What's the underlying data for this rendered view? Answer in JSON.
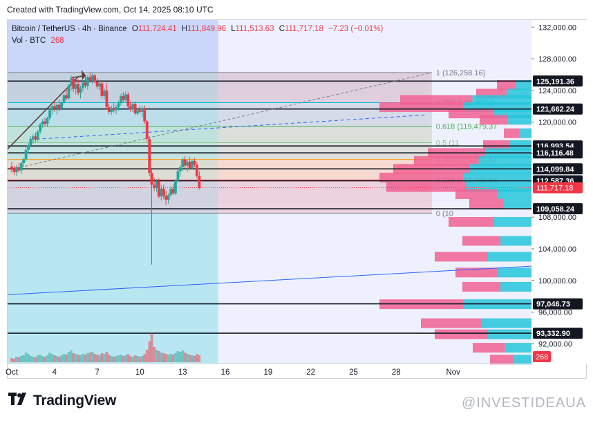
{
  "header": {
    "created_text": "Created with TradingView.com, Oct 14, 2025 08:10 UTC"
  },
  "legend": {
    "symbol": "Bitcoin / TetherUS · 4h · Binance",
    "open_k": "O",
    "open_v": "111,724.41",
    "high_k": "H",
    "high_v": "111,849.96",
    "low_k": "L",
    "low_v": "111,513.63",
    "close_k": "C",
    "close_v": "111,717.18",
    "change": "−7.23 (−0.01%)",
    "volume_label": "Vol · BTC",
    "volume_value": "268"
  },
  "footer": {
    "brand": "TradingView",
    "watermark": "@INVESTIDEAUA"
  },
  "colors": {
    "bull": "#26a69a",
    "bear": "#f23645",
    "blue_zone": "#9fb5f5",
    "pink_zone": "#f4b8c8",
    "teal_zone": "#7fd3e6",
    "vp_pink": "#f06292",
    "vp_cyan": "#26c6da",
    "trend_blue": "#2962ff"
  },
  "chart_data": {
    "type": "candlestick",
    "y_axis": {
      "range": [
        89500,
        132900
      ],
      "ticks": [
        132000,
        128000,
        124000,
        120000,
        116000,
        108000,
        104000,
        100000,
        96000,
        92000
      ],
      "tick_labels": [
        "132,000.00",
        "128,000.00",
        "124,000.00",
        "120,000.00",
        "116,000.00",
        "108,000.00",
        "104,000.00",
        "100,000.00",
        "96,000.00",
        "92,000.00"
      ]
    },
    "x_axis": {
      "range_days": [
        0,
        36.5
      ],
      "ticks": [
        {
          "day": 0,
          "label": "Oct"
        },
        {
          "day": 3,
          "label": "4"
        },
        {
          "day": 6,
          "label": "7"
        },
        {
          "day": 9,
          "label": "10"
        },
        {
          "day": 12,
          "label": "13"
        },
        {
          "day": 15,
          "label": "16"
        },
        {
          "day": 18,
          "label": "19"
        },
        {
          "day": 21,
          "label": "22"
        },
        {
          "day": 24,
          "label": "25"
        },
        {
          "day": 27,
          "label": "28"
        },
        {
          "day": 31,
          "label": "Nov"
        }
      ]
    },
    "price_lines": [
      {
        "price": 125191.36,
        "label": "125,191.36"
      },
      {
        "price": 121662.24,
        "label": "121,662.24"
      },
      {
        "price": 116993.54,
        "label": "116,993.54"
      },
      {
        "price": 116116.48,
        "label": "116,116.48"
      },
      {
        "price": 114099.84,
        "label": "114,099.84"
      },
      {
        "price": 112587.36,
        "label": "112,587.36"
      },
      {
        "price": 109058.24,
        "label": "109,058.24"
      },
      {
        "price": 97046.73,
        "label": "97,046.73"
      },
      {
        "price": 93332.9,
        "label": "93,332.90"
      }
    ],
    "current_price": {
      "price": 111717.18,
      "label": "111,717.18"
    },
    "volume_badge": "268",
    "fib_levels": [
      {
        "ratio": "1",
        "price": 126258.16,
        "label": "1 (126,258.16)"
      },
      {
        "ratio": "0.786",
        "price": 122460.6,
        "label": "0.786 (122,460.6"
      },
      {
        "ratio": "0.618",
        "price": 119479.37,
        "label": "0.618 (119,479.37"
      },
      {
        "ratio": "0.5",
        "price": 117400,
        "label": "0.5 (11"
      },
      {
        "ratio": "0.382",
        "price": 115291.43,
        "label": "0.382 (115,291.43"
      },
      {
        "ratio": "0.236",
        "price": 112700.58,
        "label": "0.236 (112,700.58"
      },
      {
        "ratio": "0",
        "price": 108500,
        "label": "0 (10"
      }
    ],
    "candles": [
      {
        "d": 0.0,
        "o": 114400,
        "h": 115000,
        "l": 113600,
        "c": 114000
      },
      {
        "d": 0.17,
        "o": 114000,
        "h": 114500,
        "l": 113300,
        "c": 113700
      },
      {
        "d": 0.33,
        "o": 113700,
        "h": 114600,
        "l": 113200,
        "c": 114300
      },
      {
        "d": 0.5,
        "o": 114300,
        "h": 114900,
        "l": 113600,
        "c": 113900
      },
      {
        "d": 0.67,
        "o": 113900,
        "h": 115000,
        "l": 113500,
        "c": 114800
      },
      {
        "d": 0.83,
        "o": 114800,
        "h": 115500,
        "l": 114300,
        "c": 115300
      },
      {
        "d": 1.0,
        "o": 115300,
        "h": 116800,
        "l": 115000,
        "c": 116500
      },
      {
        "d": 1.17,
        "o": 116500,
        "h": 117400,
        "l": 116000,
        "c": 117100
      },
      {
        "d": 1.33,
        "o": 117100,
        "h": 118200,
        "l": 116800,
        "c": 117900
      },
      {
        "d": 1.5,
        "o": 117900,
        "h": 118500,
        "l": 117300,
        "c": 118200
      },
      {
        "d": 1.67,
        "o": 118200,
        "h": 118700,
        "l": 117500,
        "c": 117800
      },
      {
        "d": 1.83,
        "o": 117800,
        "h": 119000,
        "l": 117600,
        "c": 118800
      },
      {
        "d": 2.0,
        "o": 118800,
        "h": 119900,
        "l": 118500,
        "c": 119700
      },
      {
        "d": 2.17,
        "o": 119700,
        "h": 120400,
        "l": 119300,
        "c": 120100
      },
      {
        "d": 2.33,
        "o": 120100,
        "h": 120600,
        "l": 119500,
        "c": 119800
      },
      {
        "d": 2.5,
        "o": 119800,
        "h": 120700,
        "l": 119400,
        "c": 120500
      },
      {
        "d": 2.67,
        "o": 120500,
        "h": 121800,
        "l": 120200,
        "c": 121500
      },
      {
        "d": 2.83,
        "o": 121500,
        "h": 122300,
        "l": 120900,
        "c": 122000
      },
      {
        "d": 3.0,
        "o": 122000,
        "h": 122600,
        "l": 121300,
        "c": 121700
      },
      {
        "d": 3.17,
        "o": 121700,
        "h": 122400,
        "l": 121000,
        "c": 122200
      },
      {
        "d": 3.33,
        "o": 122200,
        "h": 122800,
        "l": 121400,
        "c": 121800
      },
      {
        "d": 3.5,
        "o": 121800,
        "h": 122700,
        "l": 121500,
        "c": 122500
      },
      {
        "d": 3.67,
        "o": 122500,
        "h": 123600,
        "l": 122200,
        "c": 123400
      },
      {
        "d": 3.83,
        "o": 123400,
        "h": 124200,
        "l": 122800,
        "c": 123000
      },
      {
        "d": 4.0,
        "o": 123000,
        "h": 124800,
        "l": 122800,
        "c": 124600
      },
      {
        "d": 4.17,
        "o": 124600,
        "h": 125900,
        "l": 124000,
        "c": 125500
      },
      {
        "d": 4.33,
        "o": 125500,
        "h": 125800,
        "l": 123800,
        "c": 124200
      },
      {
        "d": 4.5,
        "o": 124200,
        "h": 125200,
        "l": 123500,
        "c": 124800
      },
      {
        "d": 4.67,
        "o": 124800,
        "h": 125400,
        "l": 123400,
        "c": 123700
      },
      {
        "d": 4.83,
        "o": 123700,
        "h": 124600,
        "l": 123000,
        "c": 124300
      },
      {
        "d": 5.0,
        "o": 124300,
        "h": 125300,
        "l": 123900,
        "c": 125000
      },
      {
        "d": 5.17,
        "o": 125000,
        "h": 125800,
        "l": 124300,
        "c": 124600
      },
      {
        "d": 5.33,
        "o": 124600,
        "h": 125900,
        "l": 124100,
        "c": 125700
      },
      {
        "d": 5.5,
        "o": 125700,
        "h": 126200,
        "l": 125000,
        "c": 125300
      },
      {
        "d": 5.67,
        "o": 125300,
        "h": 126258,
        "l": 124800,
        "c": 125900
      },
      {
        "d": 5.83,
        "o": 125900,
        "h": 126100,
        "l": 124900,
        "c": 125100
      },
      {
        "d": 6.0,
        "o": 125100,
        "h": 125600,
        "l": 124200,
        "c": 124500
      },
      {
        "d": 6.17,
        "o": 124500,
        "h": 125300,
        "l": 124000,
        "c": 124900
      },
      {
        "d": 6.33,
        "o": 124900,
        "h": 125200,
        "l": 123000,
        "c": 123300
      },
      {
        "d": 6.5,
        "o": 123300,
        "h": 124300,
        "l": 122900,
        "c": 124000
      },
      {
        "d": 6.67,
        "o": 124000,
        "h": 124900,
        "l": 121600,
        "c": 121900
      },
      {
        "d": 6.83,
        "o": 121900,
        "h": 122300,
        "l": 121000,
        "c": 121300
      },
      {
        "d": 7.0,
        "o": 121300,
        "h": 122100,
        "l": 120900,
        "c": 121800
      },
      {
        "d": 7.17,
        "o": 121800,
        "h": 122400,
        "l": 121200,
        "c": 121500
      },
      {
        "d": 7.33,
        "o": 121500,
        "h": 122200,
        "l": 121000,
        "c": 121900
      },
      {
        "d": 7.5,
        "o": 121900,
        "h": 122700,
        "l": 121500,
        "c": 122400
      },
      {
        "d": 7.67,
        "o": 122400,
        "h": 123600,
        "l": 122100,
        "c": 123300
      },
      {
        "d": 7.83,
        "o": 123300,
        "h": 123800,
        "l": 122500,
        "c": 122800
      },
      {
        "d": 8.0,
        "o": 122800,
        "h": 123900,
        "l": 122600,
        "c": 123500
      },
      {
        "d": 8.17,
        "o": 123500,
        "h": 123800,
        "l": 121800,
        "c": 122000
      },
      {
        "d": 8.33,
        "o": 122000,
        "h": 122600,
        "l": 121300,
        "c": 121600
      },
      {
        "d": 8.5,
        "o": 121600,
        "h": 122500,
        "l": 121300,
        "c": 122300
      },
      {
        "d": 8.67,
        "o": 122300,
        "h": 122600,
        "l": 120900,
        "c": 121100
      },
      {
        "d": 8.83,
        "o": 121100,
        "h": 121800,
        "l": 120800,
        "c": 121500
      },
      {
        "d": 9.0,
        "o": 121500,
        "h": 122100,
        "l": 121000,
        "c": 121300
      },
      {
        "d": 9.17,
        "o": 121300,
        "h": 122000,
        "l": 120600,
        "c": 121800
      },
      {
        "d": 9.33,
        "o": 121800,
        "h": 122100,
        "l": 119800,
        "c": 120100
      },
      {
        "d": 9.5,
        "o": 120100,
        "h": 120300,
        "l": 117500,
        "c": 117900
      },
      {
        "d": 9.67,
        "o": 117900,
        "h": 118200,
        "l": 113200,
        "c": 113600
      },
      {
        "d": 9.83,
        "o": 113600,
        "h": 114000,
        "l": 102000,
        "c": 112100
      },
      {
        "d": 10.0,
        "o": 112100,
        "h": 113000,
        "l": 111300,
        "c": 111700
      },
      {
        "d": 10.17,
        "o": 111700,
        "h": 112800,
        "l": 111200,
        "c": 112500
      },
      {
        "d": 10.33,
        "o": 112500,
        "h": 112900,
        "l": 110400,
        "c": 110600
      },
      {
        "d": 10.5,
        "o": 110600,
        "h": 112000,
        "l": 110100,
        "c": 111600
      },
      {
        "d": 10.67,
        "o": 111600,
        "h": 112100,
        "l": 110300,
        "c": 110700
      },
      {
        "d": 10.83,
        "o": 110700,
        "h": 111300,
        "l": 109500,
        "c": 110200
      },
      {
        "d": 11.0,
        "o": 110200,
        "h": 111000,
        "l": 109700,
        "c": 110800
      },
      {
        "d": 11.17,
        "o": 110800,
        "h": 111900,
        "l": 110500,
        "c": 111600
      },
      {
        "d": 11.33,
        "o": 111600,
        "h": 112200,
        "l": 110800,
        "c": 111000
      },
      {
        "d": 11.5,
        "o": 111000,
        "h": 112800,
        "l": 110800,
        "c": 112600
      },
      {
        "d": 11.67,
        "o": 112600,
        "h": 114000,
        "l": 112300,
        "c": 113800
      },
      {
        "d": 11.83,
        "o": 113800,
        "h": 114600,
        "l": 113100,
        "c": 114300
      },
      {
        "d": 12.0,
        "o": 114300,
        "h": 115500,
        "l": 113800,
        "c": 115300
      },
      {
        "d": 12.17,
        "o": 115300,
        "h": 115700,
        "l": 114200,
        "c": 114500
      },
      {
        "d": 12.33,
        "o": 114500,
        "h": 115300,
        "l": 113700,
        "c": 115000
      },
      {
        "d": 12.5,
        "o": 115000,
        "h": 115600,
        "l": 114000,
        "c": 114200
      },
      {
        "d": 12.67,
        "o": 114200,
        "h": 115300,
        "l": 114000,
        "c": 115100
      },
      {
        "d": 12.83,
        "o": 115100,
        "h": 115500,
        "l": 114300,
        "c": 114600
      },
      {
        "d": 13.0,
        "o": 114600,
        "h": 115000,
        "l": 112900,
        "c": 113200
      },
      {
        "d": 13.17,
        "o": 113200,
        "h": 113800,
        "l": 111500,
        "c": 111700
      }
    ]
  }
}
